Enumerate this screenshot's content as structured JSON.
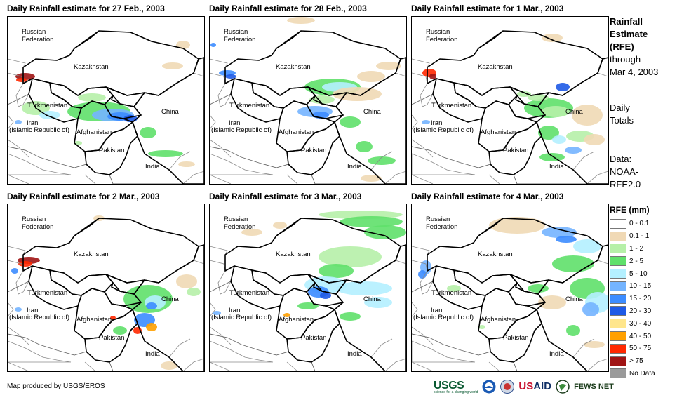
{
  "panels": [
    {
      "title": "Daily Rainfall estimate for 27 Feb., 2003"
    },
    {
      "title": "Daily Rainfall estimate for 28 Feb., 2003"
    },
    {
      "title": "Daily Rainfall estimate for 1 Mar., 2003"
    },
    {
      "title": "Daily Rainfall estimate for 2 Mar., 2003"
    },
    {
      "title": "Daily Rainfall estimate for 3 Mar., 2003"
    },
    {
      "title": "Daily Rainfall estimate for 4 Mar., 2003"
    }
  ],
  "country_labels": {
    "russia_1": "Russian",
    "russia_2": "Federation",
    "kazakhstan": "Kazakhstan",
    "turkmenistan": "Turkmenistan",
    "iran_1": "Iran",
    "iran_2": "(Islamic Republic of)",
    "afghanistan": "Afghanistan",
    "pakistan": "Pakistan",
    "china": "China",
    "india": "India"
  },
  "sidebar": {
    "heading_1": "Rainfall",
    "heading_2": "Estimate",
    "heading_3": "(RFE)",
    "through": "through",
    "date": "Mar 4, 2003",
    "daily_1": "Daily",
    "daily_2": "Totals",
    "data_1": "Data:",
    "data_2": "NOAA-",
    "data_3": "RFE2.0"
  },
  "legend": {
    "title": "RFE (mm)",
    "items": [
      {
        "label": "0 - 0.1",
        "color": "#ffffff"
      },
      {
        "label": "0.1 - 1",
        "color": "#f0d9b5"
      },
      {
        "label": "1 - 2",
        "color": "#b6f0a8"
      },
      {
        "label": "2 - 5",
        "color": "#5fe06a"
      },
      {
        "label": "5 - 10",
        "color": "#b4f0ff"
      },
      {
        "label": "10 - 15",
        "color": "#74b4ff"
      },
      {
        "label": "15 - 20",
        "color": "#3c8cff"
      },
      {
        "label": "20 - 30",
        "color": "#1e5ae6"
      },
      {
        "label": "30 - 40",
        "color": "#ffe68c"
      },
      {
        "label": "40 - 50",
        "color": "#ffa000"
      },
      {
        "label": "50 - 75",
        "color": "#ff2800"
      },
      {
        "label": "> 75",
        "color": "#a01414"
      },
      {
        "label": "No Data",
        "color": "#9a9a9a"
      }
    ]
  },
  "footer": "Map produced by USGS/EROS",
  "logos": {
    "usgs": "USGS",
    "usgs_tagline": "science for a changing world",
    "usaid_us": "US",
    "usaid_aid": "AID",
    "fews": "FEWS NET"
  }
}
